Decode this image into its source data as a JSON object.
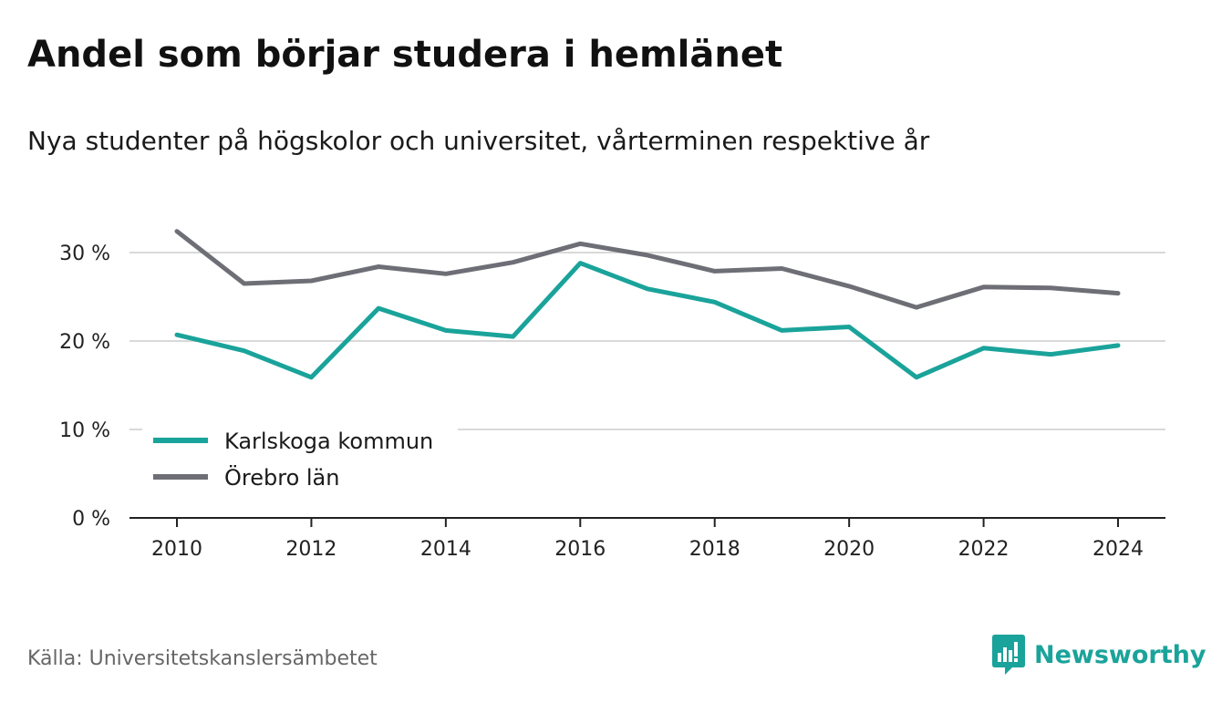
{
  "header": {
    "title": "Andel som börjar studera i hemlänet",
    "subtitle": "Nya studenter på högskolor och universitet, vårterminen respektive år"
  },
  "footer": {
    "source": "Källa: Universitetskanslersämbetet",
    "brand": "Newsworthy",
    "brand_icon": "newsworthy-logo-icon",
    "brand_color": "#1aa39a"
  },
  "chart_data": {
    "type": "line",
    "title": "",
    "xlabel": "",
    "ylabel": "",
    "x": [
      2010,
      2011,
      2012,
      2013,
      2014,
      2015,
      2016,
      2017,
      2018,
      2019,
      2020,
      2021,
      2022,
      2023,
      2024
    ],
    "x_ticks": [
      2010,
      2012,
      2014,
      2016,
      2018,
      2020,
      2022,
      2024
    ],
    "y_ticks": [
      0,
      10,
      20,
      30
    ],
    "y_tick_labels": [
      "0 %",
      "10 %",
      "20 %",
      "30 %"
    ],
    "ylim": [
      0,
      33
    ],
    "grid": true,
    "legend_position": "bottom-left",
    "series": [
      {
        "name": "Karlskoga kommun",
        "color": "#1aa39a",
        "values": [
          20.7,
          18.9,
          15.9,
          23.7,
          21.2,
          20.5,
          28.8,
          25.9,
          24.4,
          21.2,
          21.6,
          15.9,
          19.2,
          18.5,
          19.5
        ]
      },
      {
        "name": "Örebro län",
        "color": "#6e6e76",
        "values": [
          32.4,
          26.5,
          26.8,
          28.4,
          27.6,
          28.9,
          31.0,
          29.7,
          27.9,
          28.2,
          26.2,
          23.8,
          26.1,
          26.0,
          25.4
        ]
      }
    ]
  }
}
